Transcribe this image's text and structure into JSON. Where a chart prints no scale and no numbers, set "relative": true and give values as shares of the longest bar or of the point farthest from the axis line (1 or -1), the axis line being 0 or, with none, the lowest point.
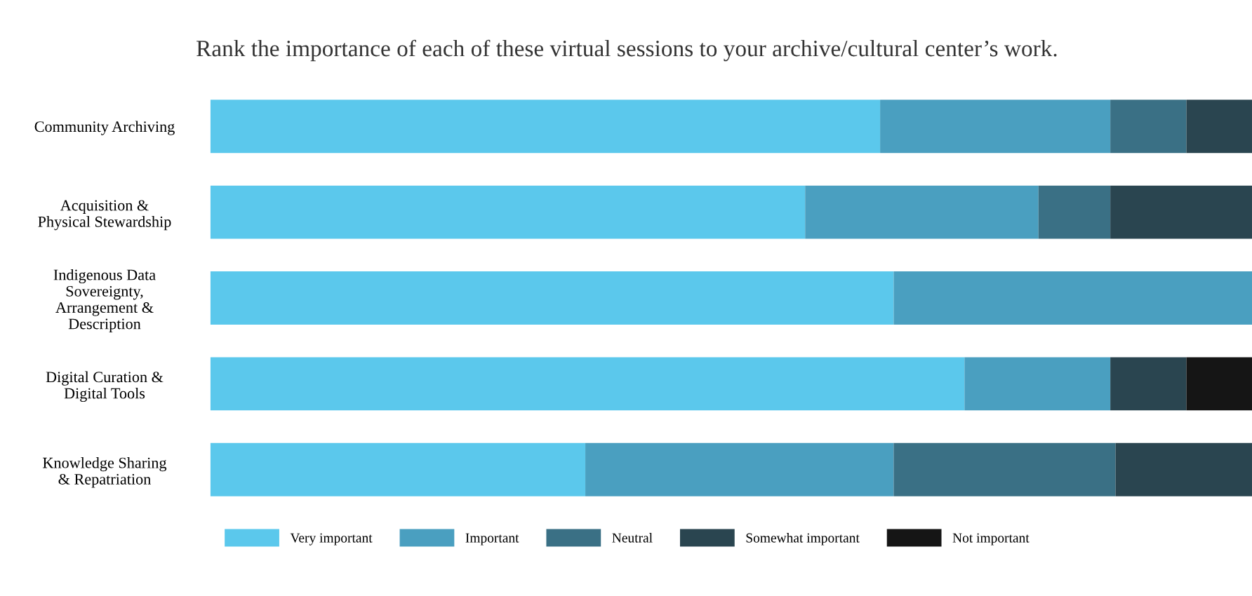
{
  "chart_data": {
    "type": "bar",
    "orientation": "horizontal",
    "stacked": true,
    "relative": true,
    "legend": "bottom",
    "grid": false,
    "title": "Rank the importance of each of these virtual sessions to your archive/cultural center’s work.",
    "categories": [
      "Community Archiving",
      "Acquisition &\nPhysical Stewardship",
      "Indigenous Data\nSovereignty,\nArrangement &\nDescription",
      "Digital Curation &\nDigital Tools",
      "Knowledge Sharing\n& Repatriation"
    ],
    "series": [
      {
        "name": "Very important",
        "color": "#5bc8ec",
        "values": [
          0.643,
          0.571,
          0.656,
          0.724,
          0.36
        ]
      },
      {
        "name": "Important",
        "color": "#4a9fc0",
        "values": [
          0.221,
          0.224,
          0.344,
          0.14,
          0.296
        ]
      },
      {
        "name": "Neutral",
        "color": "#3a7085",
        "values": [
          0.073,
          0.069,
          0,
          0,
          0.213
        ]
      },
      {
        "name": "Somewhat important",
        "color": "#2a4550",
        "values": [
          0.063,
          0.136,
          0,
          0.073,
          0.131
        ]
      },
      {
        "name": "Not important",
        "color": "#151515",
        "values": [
          0,
          0,
          0,
          0.063,
          0
        ]
      }
    ]
  }
}
